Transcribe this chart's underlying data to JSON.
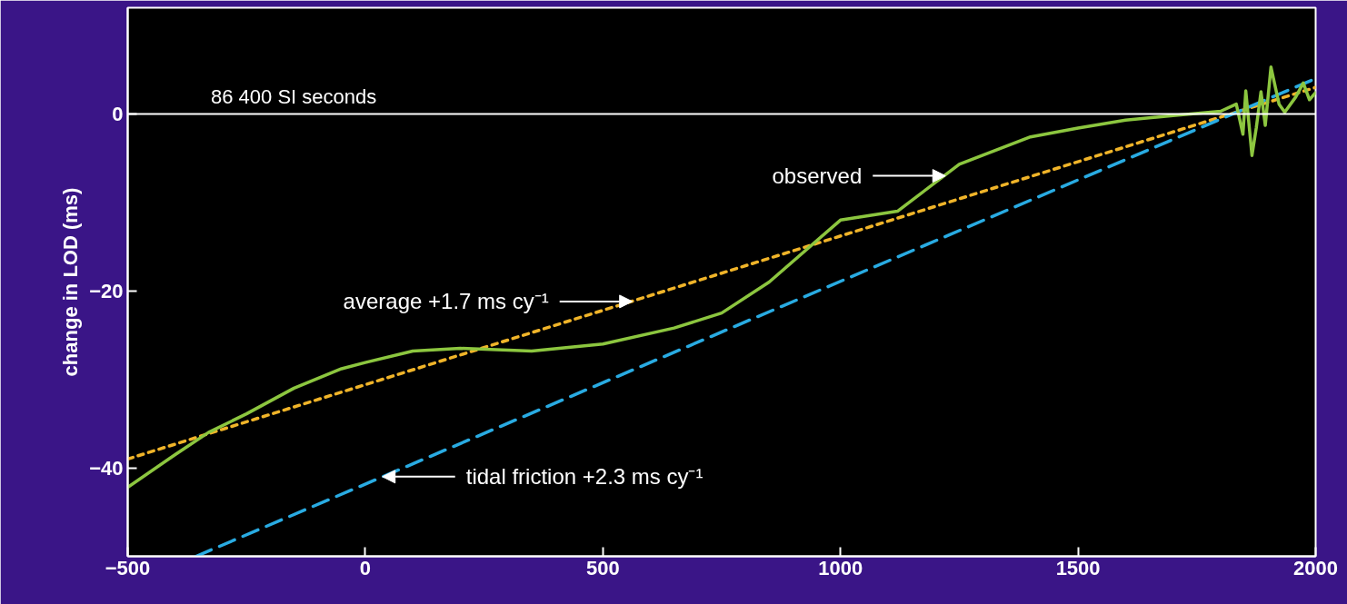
{
  "chart_data": {
    "type": "line",
    "ylabel": "change in LOD (ms)",
    "xlim": [
      -500,
      2000
    ],
    "ylim": [
      -50,
      12
    ],
    "xticks": [
      {
        "value": -500,
        "label": "−500"
      },
      0,
      500,
      1000,
      1500,
      2000
    ],
    "yticks": [
      0,
      {
        "value": -20,
        "label": "−20"
      },
      {
        "value": -40,
        "label": "−40"
      }
    ],
    "grid": false,
    "series": [
      {
        "color": "#f0b429",
        "line_style": "dotted",
        "x": [
          -500,
          2000
        ],
        "values": [
          -39,
          3
        ]
      },
      {
        "color": "#29abe2",
        "line_style": "dashed",
        "x": [
          -356,
          2000
        ],
        "values": [
          -50,
          4
        ]
      },
      {
        "color": "#8cc63f",
        "line_style": "solid",
        "x": [
          -500,
          -400,
          -330,
          -250,
          -150,
          -50,
          0,
          100,
          200,
          350,
          500,
          650,
          750,
          850,
          1000,
          1120,
          1250,
          1400,
          1500,
          1600,
          1700,
          1800,
          1833,
          1847,
          1853,
          1866,
          1875,
          1885,
          1894,
          1906,
          1923,
          1935,
          1958,
          1974,
          1987,
          2000
        ],
        "values": [
          -42.2,
          -38.5,
          -36,
          -33.9,
          -31,
          -28.8,
          -28.1,
          -26.8,
          -26.5,
          -26.8,
          -26,
          -24.2,
          -22.5,
          -19,
          -12,
          -11,
          -5.7,
          -2.6,
          -1.6,
          -0.7,
          -0.2,
          0.3,
          1.1,
          -2.3,
          2.6,
          -4.7,
          -1.6,
          2.5,
          -1.3,
          5.3,
          1.1,
          0.2,
          1.9,
          3.5,
          1.6,
          2.4
        ]
      }
    ],
    "ref_lines": [
      {
        "axis": "y",
        "value": 0,
        "label": "86 400 SI seconds",
        "color": "#ffffff"
      }
    ],
    "annotations": [
      {
        "text": "observed",
        "x": 1221,
        "y": -7
      },
      {
        "text": "average +1.7 ms cy⁻¹",
        "x": 562,
        "y": -21.2
      },
      {
        "text": "tidal friction +2.3 ms cy⁻¹",
        "x": 36,
        "y": -41
      }
    ]
  }
}
